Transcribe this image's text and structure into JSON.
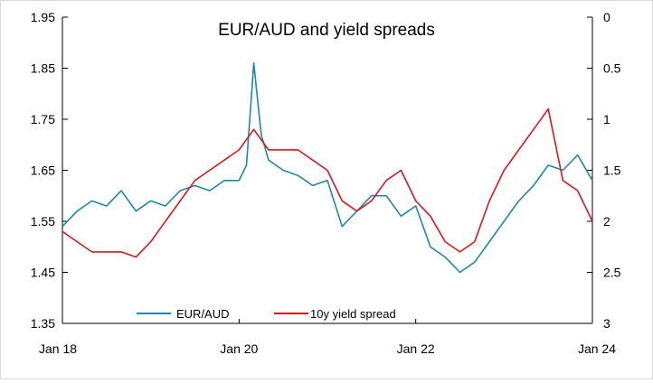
{
  "chart_data": {
    "type": "line",
    "title": "EUR/AUD and yield spreads",
    "y_left": {
      "ticks": [
        "1.95",
        "1.85",
        "1.75",
        "1.65",
        "1.55",
        "1.45",
        "1.35"
      ],
      "range": [
        1.35,
        1.95
      ]
    },
    "y_right": {
      "ticks": [
        "0",
        "0.5",
        "1",
        "1.5",
        "2",
        "2.5",
        "3"
      ],
      "range": [
        0,
        3
      ],
      "inverted": true
    },
    "x": {
      "ticks": [
        "Jan 18",
        "Jan 20",
        "Jan 22",
        "Jan 24"
      ],
      "range": [
        "2018-01",
        "2024-01"
      ]
    },
    "legend": {
      "placement": "bottom"
    },
    "series": [
      {
        "name": "EUR/AUD",
        "color": "#1f87a8",
        "axis": "left",
        "points": [
          [
            "2018-01",
            1.54
          ],
          [
            "2018-03",
            1.57
          ],
          [
            "2018-05",
            1.59
          ],
          [
            "2018-07",
            1.58
          ],
          [
            "2018-09",
            1.61
          ],
          [
            "2018-11",
            1.57
          ],
          [
            "2019-01",
            1.59
          ],
          [
            "2019-03",
            1.58
          ],
          [
            "2019-05",
            1.61
          ],
          [
            "2019-07",
            1.62
          ],
          [
            "2019-09",
            1.61
          ],
          [
            "2019-11",
            1.63
          ],
          [
            "2020-01",
            1.63
          ],
          [
            "2020-02",
            1.66
          ],
          [
            "2020-03",
            1.86
          ],
          [
            "2020-04",
            1.72
          ],
          [
            "2020-05",
            1.67
          ],
          [
            "2020-07",
            1.65
          ],
          [
            "2020-09",
            1.64
          ],
          [
            "2020-11",
            1.62
          ],
          [
            "2021-01",
            1.63
          ],
          [
            "2021-03",
            1.54
          ],
          [
            "2021-05",
            1.57
          ],
          [
            "2021-07",
            1.6
          ],
          [
            "2021-09",
            1.6
          ],
          [
            "2021-11",
            1.56
          ],
          [
            "2022-01",
            1.58
          ],
          [
            "2022-03",
            1.5
          ],
          [
            "2022-05",
            1.48
          ],
          [
            "2022-07",
            1.45
          ],
          [
            "2022-09",
            1.47
          ],
          [
            "2022-11",
            1.51
          ],
          [
            "2023-01",
            1.55
          ],
          [
            "2023-03",
            1.59
          ],
          [
            "2023-05",
            1.62
          ],
          [
            "2023-07",
            1.66
          ],
          [
            "2023-09",
            1.65
          ],
          [
            "2023-11",
            1.68
          ],
          [
            "2024-01",
            1.63
          ]
        ]
      },
      {
        "name": "10y yield spread",
        "color": "#d7191c",
        "axis": "right",
        "points": [
          [
            "2018-01",
            2.1
          ],
          [
            "2018-03",
            2.2
          ],
          [
            "2018-05",
            2.3
          ],
          [
            "2018-07",
            2.3
          ],
          [
            "2018-09",
            2.3
          ],
          [
            "2018-11",
            2.35
          ],
          [
            "2019-01",
            2.2
          ],
          [
            "2019-03",
            2.0
          ],
          [
            "2019-05",
            1.8
          ],
          [
            "2019-07",
            1.6
          ],
          [
            "2019-09",
            1.5
          ],
          [
            "2019-11",
            1.4
          ],
          [
            "2020-01",
            1.3
          ],
          [
            "2020-03",
            1.1
          ],
          [
            "2020-05",
            1.3
          ],
          [
            "2020-07",
            1.3
          ],
          [
            "2020-09",
            1.3
          ],
          [
            "2020-11",
            1.4
          ],
          [
            "2021-01",
            1.5
          ],
          [
            "2021-03",
            1.8
          ],
          [
            "2021-05",
            1.9
          ],
          [
            "2021-07",
            1.8
          ],
          [
            "2021-09",
            1.6
          ],
          [
            "2021-11",
            1.5
          ],
          [
            "2022-01",
            1.8
          ],
          [
            "2022-03",
            1.95
          ],
          [
            "2022-05",
            2.2
          ],
          [
            "2022-07",
            2.3
          ],
          [
            "2022-09",
            2.2
          ],
          [
            "2022-11",
            1.8
          ],
          [
            "2023-01",
            1.5
          ],
          [
            "2023-03",
            1.3
          ],
          [
            "2023-05",
            1.1
          ],
          [
            "2023-07",
            0.9
          ],
          [
            "2023-09",
            1.6
          ],
          [
            "2023-11",
            1.7
          ],
          [
            "2024-01",
            2.0
          ]
        ]
      }
    ]
  }
}
